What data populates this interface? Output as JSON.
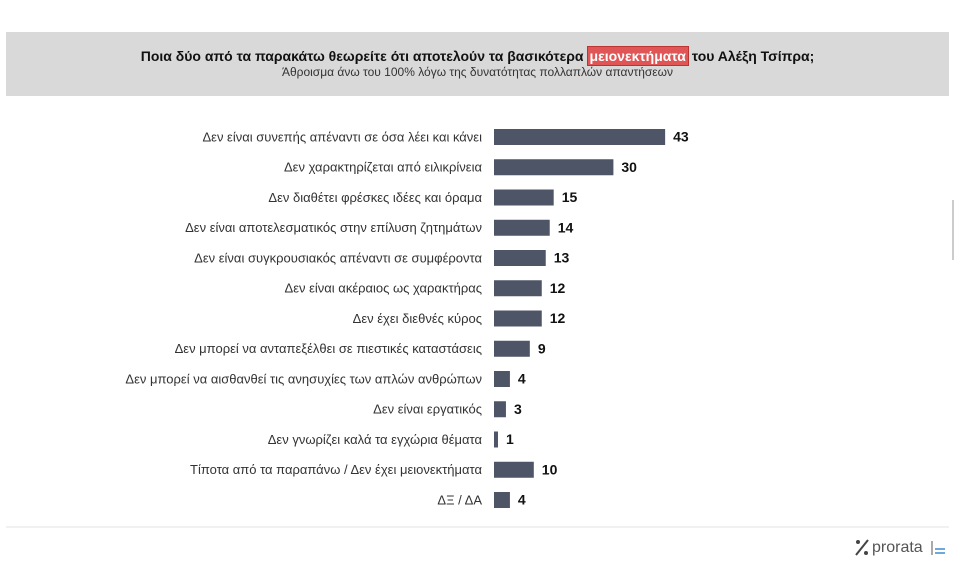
{
  "chart_data": {
    "type": "bar",
    "orientation": "horizontal",
    "title": [
      "Ποια δύο από τα παρακάτω θεωρείτε ότι αποτελούν τα βασικότερα",
      "μειονεκτήματα",
      "του Αλέξη Τσίπρα;"
    ],
    "subtitle": "Άθροισμα άνω του 100% λόγω της δυνατότητας πολλαπλών απαντήσεων",
    "categories": [
      "Δεν είναι συνεπής απέναντι σε όσα λέει και κάνει",
      "Δεν χαρακτηρίζεται από ειλικρίνεια",
      "Δεν διαθέτει φρέσκες ιδέες και όραμα",
      "Δεν είναι αποτελεσματικός στην επίλυση ζητημάτων",
      "Δεν είναι συγκρουσιακός απέναντι σε συμφέροντα",
      "Δεν είναι ακέραιος ως χαρακτήρας",
      "Δεν έχει διεθνές κύρος",
      "Δεν μπορεί να ανταπεξέλθει σε πιεστικές καταστάσεις",
      "Δεν μπορεί να αισθανθεί τις ανησυχίες των απλών ανθρώπων",
      "Δεν είναι εργατικός",
      "Δεν γνωρίζει καλά τα εγχώρια θέματα",
      "Τίποτα από τα παραπάνω / Δεν έχει μειονεκτήματα",
      "ΔΞ / ΔΑ"
    ],
    "values": [
      43,
      30,
      15,
      14,
      13,
      12,
      12,
      9,
      4,
      3,
      1,
      10,
      4
    ],
    "color": "#4d5566",
    "logo": "prorata"
  }
}
